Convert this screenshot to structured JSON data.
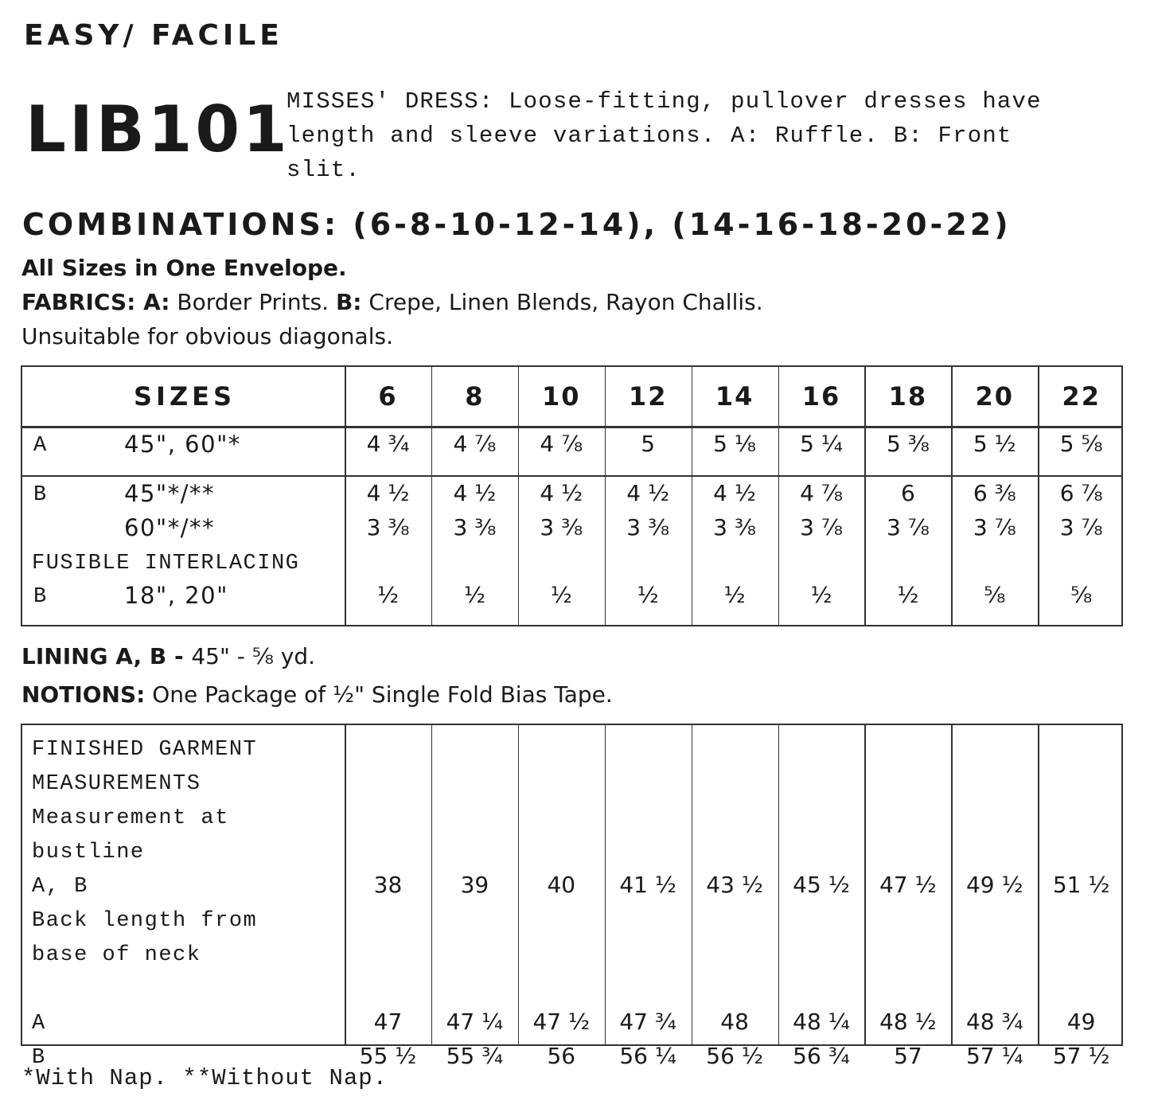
{
  "header": {
    "difficulty": "EASY/ FACILE",
    "pattern_code": "LIB101",
    "description": "MISSES' DRESS: Loose-fitting, pullover dresses have length and sleeve variations. A: Ruffle. B: Front slit."
  },
  "combinations": "COMBINATIONS: (6-8-10-12-14), (14-16-18-20-22)",
  "all_sizes": "All Sizes in One Envelope.",
  "fabrics": {
    "label": "FABRICS: A:",
    "a_text": " Border Prints. ",
    "b_label": "B:",
    "b_text": " Crepe, Linen Blends, Rayon Challis."
  },
  "unsuitable": "Unsuitable for obvious diagonals.",
  "yardage_table": {
    "header_label": "SIZES",
    "sizes": [
      "6",
      "8",
      "10",
      "12",
      "14",
      "16",
      "18",
      "20",
      "22"
    ],
    "rows": [
      {
        "view": "A",
        "width": "45\", 60\"*",
        "values": [
          "4 ³⁄₄",
          "4 ⁷⁄₈",
          "4 ⁷⁄₈",
          "5",
          "5 ¹⁄₈",
          "5 ¹⁄₄",
          "5 ³⁄₈",
          "5 ¹⁄₂",
          "5 ⁵⁄₈"
        ]
      },
      {
        "view": "B",
        "width": "45\"*/**",
        "values": [
          "4 ¹⁄₂",
          "4 ¹⁄₂",
          "4 ¹⁄₂",
          "4 ¹⁄₂",
          "4 ¹⁄₂",
          "4 ⁷⁄₈",
          "6",
          "6 ³⁄₈",
          "6 ⁷⁄₈"
        ]
      },
      {
        "view": "",
        "width": "60\"*/**",
        "values": [
          "3 ³⁄₈",
          "3 ³⁄₈",
          "3 ³⁄₈",
          "3 ³⁄₈",
          "3 ³⁄₈",
          "3 ⁷⁄₈",
          "3 ⁷⁄₈",
          "3 ⁷⁄₈",
          "3 ⁷⁄₈"
        ]
      },
      {
        "view": "FUSIBLE INTERLACING",
        "width": "",
        "values": [
          "",
          "",
          "",
          "",
          "",
          "",
          "",
          "",
          ""
        ]
      },
      {
        "view": "B",
        "width": "18\", 20\"",
        "values": [
          "¹⁄₂",
          "¹⁄₂",
          "¹⁄₂",
          "¹⁄₂",
          "¹⁄₂",
          "¹⁄₂",
          "¹⁄₂",
          "⁵⁄₈",
          "⁵⁄₈"
        ]
      }
    ]
  },
  "lining": {
    "label": "LINING A, B - ",
    "text": "45\" - ⁵⁄₈ yd."
  },
  "notions": {
    "label": "NOTIONS:",
    "text": " One Package of ¹⁄₂\" Single Fold Bias Tape."
  },
  "measurements_table": {
    "label_lines": [
      "FINISHED GARMENT",
      "MEASUREMENTS",
      "Measurement at",
      "bustline",
      "A, B",
      "Back length from",
      "base of neck",
      "",
      "A",
      "B"
    ],
    "rows": [
      {
        "line": 4,
        "values": [
          "38",
          "39",
          "40",
          "41 ¹⁄₂",
          "43 ¹⁄₂",
          "45 ¹⁄₂",
          "47 ¹⁄₂",
          "49 ¹⁄₂",
          "51 ¹⁄₂"
        ]
      },
      {
        "line": 8,
        "values": [
          "47",
          "47 ¹⁄₄",
          "47 ¹⁄₂",
          "47 ³⁄₄",
          "48",
          "48 ¹⁄₄",
          "48 ¹⁄₂",
          "48 ³⁄₄",
          "49"
        ]
      },
      {
        "line": 9,
        "values": [
          "55 ¹⁄₂",
          "55 ³⁄₄",
          "56",
          "56 ¹⁄₄",
          "56 ¹⁄₂",
          "56 ³⁄₄",
          "57",
          "57 ¹⁄₄",
          "57 ¹⁄₂"
        ]
      }
    ]
  },
  "footnote": "*With Nap. **Without Nap."
}
